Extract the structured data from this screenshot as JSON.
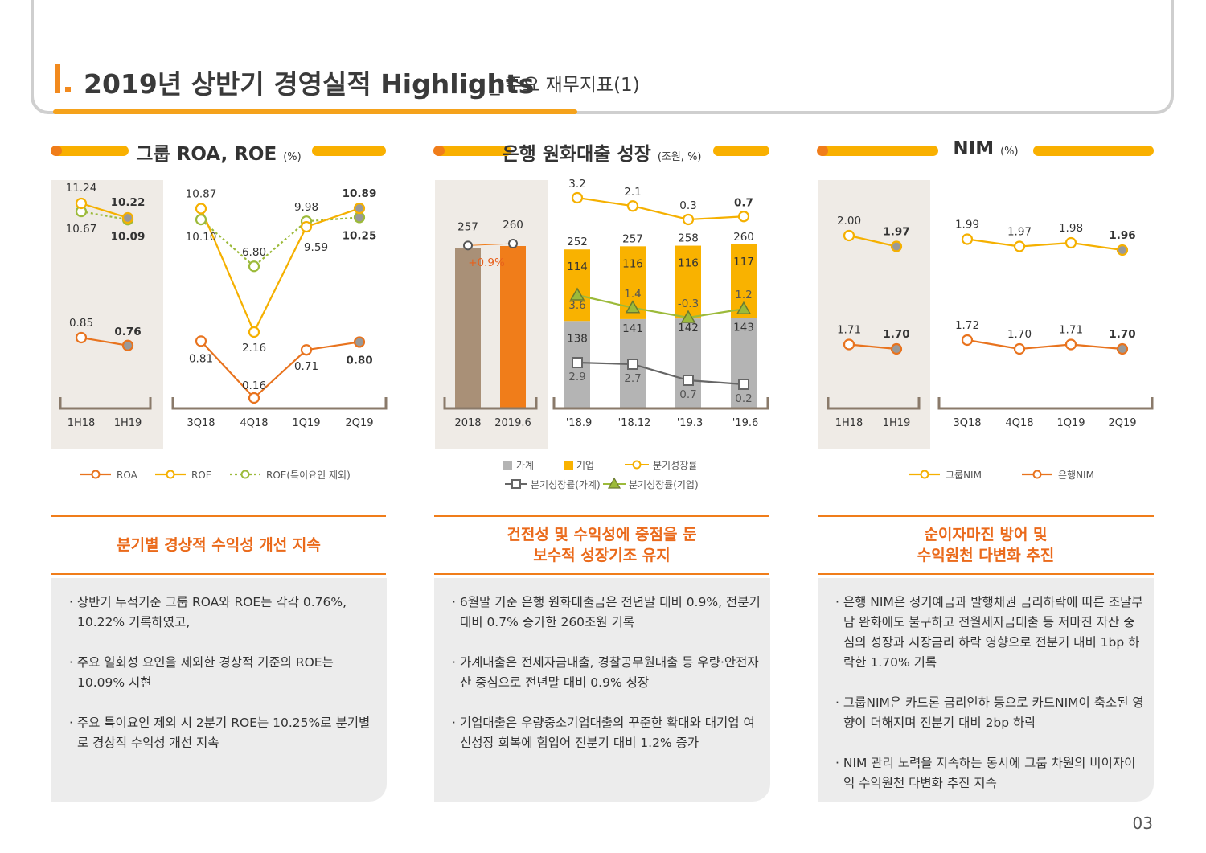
{
  "header": {
    "title_main": "2019년 상반기 경영실적 Highlights",
    "title_sub": "_ 주요 재무지표(1)"
  },
  "sections": [
    {
      "title": "그룹 ROA, ROE",
      "unit": "(%)"
    },
    {
      "title": "은행 원화대출 성장",
      "unit": "(조원, %)"
    },
    {
      "title": "NIM",
      "unit": "(%)"
    }
  ],
  "chart_data": [
    {
      "type": "line",
      "categories": [
        "1H18",
        "1H19",
        "3Q18",
        "4Q18",
        "1Q19",
        "2Q19"
      ],
      "series": [
        {
          "name": "ROA",
          "values": [
            0.85,
            0.76,
            0.81,
            0.16,
            0.71,
            0.8
          ]
        },
        {
          "name": "ROE",
          "values": [
            11.24,
            10.22,
            10.87,
            2.16,
            9.59,
            10.89
          ]
        },
        {
          "name": "ROE(특이요인 제외)",
          "values": [
            10.67,
            10.09,
            10.1,
            6.8,
            9.98,
            10.25
          ]
        }
      ],
      "labels": {
        "ROA": [
          "0.85",
          "0.76",
          "0.81",
          "0.16",
          "0.71",
          "0.80"
        ],
        "ROE": [
          "11.24",
          "10.22",
          "10.87",
          "2.16",
          "9.59",
          "10.89"
        ],
        "ROE_ex": [
          "10.67",
          "10.09",
          "10.10",
          "6.80",
          "9.98",
          "10.25"
        ]
      },
      "legend_position": "bottom",
      "colors": {
        "ROA": "#e8731e",
        "ROE": "#f5b000",
        "ROE_ex": "#9cba3a"
      }
    },
    {
      "type": "bar",
      "annual": {
        "categories": [
          "2018",
          "2019.6"
        ],
        "values": [
          257,
          260
        ],
        "labels": [
          "257",
          "260"
        ],
        "growth_label": "+0.9%"
      },
      "quarterly": {
        "categories": [
          "'18.9",
          "'18.12",
          "'19.3",
          "'19.6"
        ],
        "series": [
          {
            "name": "가계",
            "values": [
              138,
              141,
              142,
              143
            ]
          },
          {
            "name": "기업",
            "values": [
              114,
              116,
              116,
              117
            ]
          }
        ],
        "totals": [
          252,
          257,
          258,
          260
        ],
        "growth": [
          3.2,
          2.1,
          0.3,
          0.7
        ],
        "growth_household": [
          2.9,
          2.7,
          0.7,
          0.2
        ],
        "growth_corporate": [
          3.6,
          1.4,
          -0.3,
          1.2
        ],
        "labels": {
          "household": [
            "138",
            "141",
            "142",
            "143"
          ],
          "corporate": [
            "114",
            "116",
            "116",
            "117"
          ],
          "totals": [
            "252",
            "257",
            "258",
            "260"
          ],
          "growth": [
            "3.2",
            "2.1",
            "0.3",
            "0.7"
          ],
          "growth_household": [
            "2.9",
            "2.7",
            "0.7",
            "0.2"
          ],
          "growth_corporate": [
            "3.6",
            "1.4",
            "-0.3",
            "1.2"
          ]
        }
      },
      "legend": [
        "가계",
        "기업",
        "분기성장률",
        "분기성장률(가계)",
        "분기성장률(기업)"
      ],
      "legend_position": "bottom",
      "colors": {
        "household": "#b4b4b4",
        "corporate": "#f9b200",
        "annual_2018": "#a99077",
        "annual_2019": "#f07d1a",
        "growth": "#f5b000",
        "growth_household": "#666666",
        "growth_corporate": "#9cba3a"
      }
    },
    {
      "type": "line",
      "categories": [
        "1H18",
        "1H19",
        "3Q18",
        "4Q18",
        "1Q19",
        "2Q19"
      ],
      "series": [
        {
          "name": "그룹NIM",
          "values": [
            2.0,
            1.97,
            1.99,
            1.97,
            1.98,
            1.96
          ]
        },
        {
          "name": "은행NIM",
          "values": [
            1.71,
            1.7,
            1.72,
            1.7,
            1.71,
            1.7
          ]
        }
      ],
      "labels": {
        "group": [
          "2.00",
          "1.97",
          "1.99",
          "1.97",
          "1.98",
          "1.96"
        ],
        "bank": [
          "1.71",
          "1.70",
          "1.72",
          "1.70",
          "1.71",
          "1.70"
        ]
      },
      "legend_position": "bottom",
      "colors": {
        "group": "#f5b000",
        "bank": "#e8731e"
      }
    }
  ],
  "highlights": [
    {
      "lines": [
        "분기별 경상적 수익성 개선 지속"
      ]
    },
    {
      "lines": [
        "건전성 및 수익성에 중점을 둔",
        "보수적 성장기조 유지"
      ]
    },
    {
      "lines": [
        "순이자마진 방어 및",
        "수익원천 다변화 추진"
      ]
    }
  ],
  "descriptions": [
    [
      "· 상반기 누적기준 그룹 ROA와 ROE는 각각 0.76%, 10.22% 기록하였고,",
      "· 주요 일회성 요인을 제외한 경상적 기준의 ROE는 10.09% 시현",
      "· 주요 특이요인 제외 시 2분기 ROE는 10.25%로 분기별로 경상적 수익성 개선 지속"
    ],
    [
      "· 6월말 기준 은행 원화대출금은 전년말 대비 0.9%, 전분기 대비 0.7% 증가한 260조원 기록",
      "· 가계대출은 전세자금대출, 경찰공무원대출 등 우량·안전자산 중심으로 전년말 대비 0.9% 성장",
      "· 기업대출은 우량중소기업대출의 꾸준한 확대와 대기업 여신성장 회복에 힘입어 전분기 대비 1.2% 증가"
    ],
    [
      "· 은행 NIM은 정기예금과 발행채권 금리하락에 따른 조달부담 완화에도 불구하고 전월세자금대출 등 저마진 자산 중심의 성장과 시장금리 하락 영향으로 전분기 대비 1bp 하락한 1.70% 기록",
      "· 그룹NIM은 카드론 금리인하 등으로 카드NIM이 축소된 영향이 더해지며 전분기 대비 2bp 하락",
      "· NIM 관리 노력을 지속하는 동시에 그룹 차원의 비이자이익 수익원천 다변화 추진 지속"
    ]
  ],
  "page_number": "03"
}
